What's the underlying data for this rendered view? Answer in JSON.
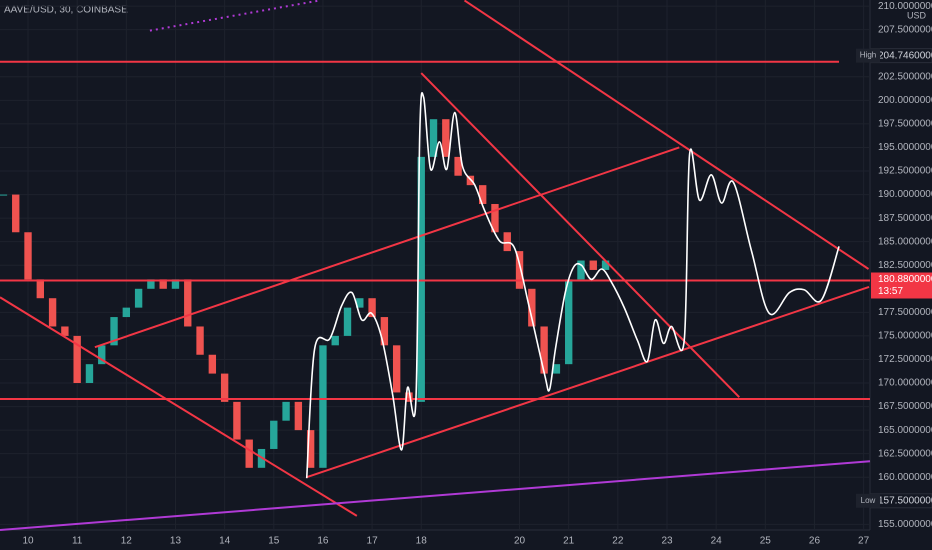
{
  "chart_data": {
    "type": "candlestick",
    "title": "AAVE/USD, 30, COINBASE",
    "currency": "USD",
    "xlim": [
      9.43,
      27.13
    ],
    "ylim": [
      154.4,
      210.65
    ],
    "xticks": [
      10,
      11,
      12,
      13,
      14,
      15,
      16,
      17,
      18,
      20,
      21,
      22,
      23,
      24,
      25,
      26,
      27
    ],
    "yticks": [
      {
        "value": 210,
        "label": "210.00000000"
      },
      {
        "value": 207.5,
        "label": "207.50000000"
      },
      {
        "value": 202.5,
        "label": "202.50000000"
      },
      {
        "value": 200,
        "label": "200.00000000"
      },
      {
        "value": 197.5,
        "label": "197.50000000"
      },
      {
        "value": 195,
        "label": "195.00000000"
      },
      {
        "value": 192.5,
        "label": "192.50000000"
      },
      {
        "value": 190,
        "label": "190.00000000"
      },
      {
        "value": 187.5,
        "label": "187.50000000"
      },
      {
        "value": 185,
        "label": "185.00000000"
      },
      {
        "value": 182.5,
        "label": "182.50000000"
      },
      {
        "value": 177.5,
        "label": "177.50000000"
      },
      {
        "value": 175,
        "label": "175.00000000"
      },
      {
        "value": 172.5,
        "label": "172.50000000"
      },
      {
        "value": 170,
        "label": "170.00000000"
      },
      {
        "value": 167.5,
        "label": "167.50000000"
      },
      {
        "value": 165,
        "label": "165.00000000"
      },
      {
        "value": 162.5,
        "label": "162.50000000"
      },
      {
        "value": 160,
        "label": "160.00000000"
      },
      {
        "value": 155,
        "label": "155.00000000"
      }
    ],
    "grid": true,
    "up_color": "#26a69a",
    "down_color": "#ef5350",
    "series": [
      {
        "name": "AAVE/USD",
        "x": [
          9.5,
          9.75,
          10,
          10.25,
          10.5,
          10.75,
          11,
          11.25,
          11.5,
          11.75,
          12,
          12.25,
          12.5,
          12.75,
          13,
          13.25,
          13.5,
          13.75,
          14,
          14.25,
          14.5,
          14.75,
          15,
          15.25,
          15.5,
          15.75,
          16,
          16.25,
          16.5,
          16.75,
          17,
          17.25,
          17.5,
          17.75,
          18,
          18.25,
          18.5,
          18.75,
          19,
          19.25,
          19.5,
          19.75,
          20,
          20.25,
          20.5,
          20.75,
          21,
          21.25,
          21.5,
          21.75
        ],
        "values": [
          190,
          186,
          181,
          179,
          176,
          175,
          170,
          172,
          174,
          177,
          178,
          180,
          181,
          180,
          181,
          176,
          173,
          171,
          168,
          164,
          161,
          163,
          166,
          168,
          165,
          161,
          174,
          175,
          178,
          179,
          177,
          174,
          169,
          168,
          194,
          198,
          194,
          192,
          191,
          189,
          186,
          184,
          180,
          176,
          171,
          172,
          181,
          183,
          182,
          183
        ]
      }
    ],
    "price_labels": [
      {
        "label": "High",
        "value": 204.746,
        "text": "204.74600000"
      },
      {
        "label": "Low",
        "value": 157.5,
        "text": "157.50000000"
      }
    ],
    "last_price": {
      "value": 180.88,
      "text": "180.88000000",
      "countdown": "13:57",
      "color": "#f23645"
    },
    "drawings": [
      {
        "color": "#f23645",
        "x": [
          9.43,
          26.5
        ],
        "y": [
          204.1,
          204.1
        ]
      },
      {
        "color": "#f23645",
        "x": [
          9.43,
          27.13
        ],
        "y": [
          180.88,
          180.88
        ]
      },
      {
        "color": "#f23645",
        "x": [
          9.43,
          27.13
        ],
        "y": [
          168.3,
          168.3
        ]
      },
      {
        "color": "#f23645",
        "x": [
          18.88,
          27.1
        ],
        "y": [
          210.6,
          182.1
        ]
      },
      {
        "color": "#f23645",
        "x": [
          18.0,
          24.47
        ],
        "y": [
          202.9,
          168.5
        ]
      },
      {
        "color": "#f23645",
        "x": [
          9.43,
          16.69
        ],
        "y": [
          179.1,
          155.9
        ]
      },
      {
        "color": "#f23645",
        "x": [
          11.36,
          23.25
        ],
        "y": [
          173.8,
          195.0
        ]
      },
      {
        "color": "#f23645",
        "x": [
          15.67,
          27.11
        ],
        "y": [
          160.0,
          180.2
        ]
      },
      {
        "color": "#b03ad6",
        "x": [
          9.43,
          27.13
        ],
        "y": [
          154.4,
          161.7
        ]
      },
      {
        "color": "#b03ad6",
        "dashed": true,
        "x": [
          12.48,
          15.93
        ],
        "y": [
          207.4,
          210.6
        ]
      }
    ],
    "projection": {
      "color": "#ffffff",
      "x": [
        15.67,
        15.83,
        16.14,
        16.38,
        16.59,
        16.79,
        16.99,
        17.2,
        17.42,
        17.6,
        17.72,
        17.89,
        17.97,
        18.05,
        18.19,
        18.37,
        18.52,
        18.68,
        18.84,
        19.09,
        19.29,
        19.59,
        19.9,
        20.2,
        20.51,
        20.61,
        20.73,
        20.93,
        21.1,
        21.26,
        21.46,
        21.67,
        21.87,
        22.13,
        22.4,
        22.6,
        22.76,
        22.93,
        23.09,
        23.35,
        23.46,
        23.66,
        23.9,
        24.11,
        24.35,
        24.72,
        25.08,
        25.49,
        25.79,
        26.14,
        26.5
      ],
      "y": [
        159.9,
        173.6,
        174.7,
        178.2,
        179.6,
        176.7,
        177.4,
        174.7,
        168.7,
        162.9,
        169.5,
        168,
        196.5,
        200.3,
        192.7,
        195.6,
        192.7,
        198.7,
        193,
        191,
        188.3,
        185.1,
        184.3,
        178,
        170.9,
        169.3,
        173.6,
        179.6,
        182.3,
        182.5,
        181,
        182.1,
        180.7,
        178,
        174.5,
        172.3,
        176.7,
        174.2,
        176,
        174.5,
        194.3,
        189.4,
        192.1,
        189.1,
        191.3,
        184,
        177.4,
        179.6,
        179.9,
        178.8,
        184.5
      ]
    }
  }
}
